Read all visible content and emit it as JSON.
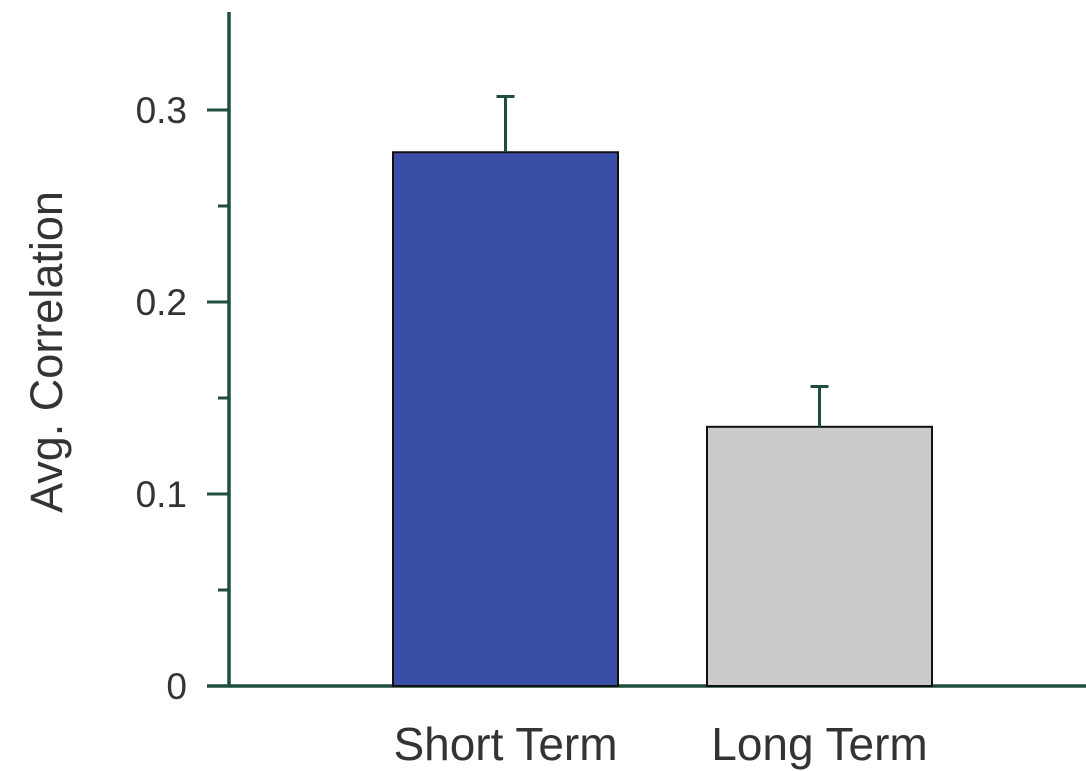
{
  "chart_data": {
    "type": "bar",
    "categories": [
      "Short Term",
      "Long Term"
    ],
    "values": [
      0.278,
      0.135
    ],
    "errors": [
      0.029,
      0.021
    ],
    "ylabel": "Avg.  Correlation",
    "xlabel": "",
    "ylim": [
      0,
      0.35
    ],
    "yticks": [
      0,
      0.1,
      0.2,
      0.3
    ],
    "ytick_labels": [
      "0",
      "0.1",
      "0.2",
      "0.3"
    ],
    "minor_yticks": [
      0.05,
      0.15,
      0.25
    ],
    "bar_colors": [
      "#3a4ea8",
      "#cbcbcb"
    ],
    "axis_color": "#1f4d3e",
    "grid": false,
    "legend": "none"
  }
}
